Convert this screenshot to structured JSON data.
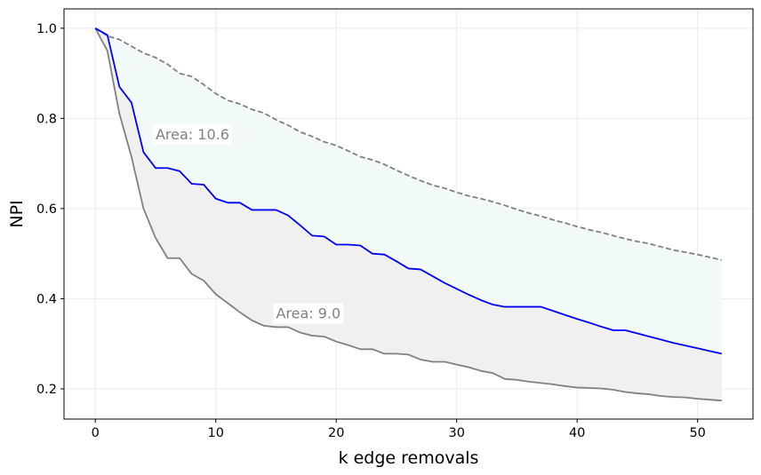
{
  "chart_data": {
    "type": "line",
    "xlabel": "k edge removals",
    "ylabel": "NPI",
    "xlim": [
      -2.6,
      54.6
    ],
    "ylim": [
      0.133,
      1.043
    ],
    "xticks": [
      0,
      10,
      20,
      30,
      40,
      50
    ],
    "yticks": [
      0.2,
      0.4,
      0.6,
      0.8,
      1.0
    ],
    "xtick_labels": [
      "0",
      "10",
      "20",
      "30",
      "40",
      "50"
    ],
    "ytick_labels": [
      "0.2",
      "0.4",
      "0.6",
      "0.8",
      "1.0"
    ],
    "grid": true,
    "x": [
      0,
      1,
      2,
      3,
      4,
      5,
      6,
      7,
      8,
      9,
      10,
      11,
      12,
      13,
      14,
      15,
      16,
      17,
      18,
      19,
      20,
      21,
      22,
      23,
      24,
      25,
      26,
      27,
      28,
      29,
      30,
      31,
      32,
      33,
      34,
      35,
      36,
      37,
      38,
      39,
      40,
      41,
      42,
      43,
      44,
      45,
      46,
      47,
      48,
      49,
      50,
      51,
      52
    ],
    "series": [
      {
        "role": "upper-bound",
        "color": "#808080",
        "dash": "dashed",
        "values": [
          1.0,
          0.983,
          0.975,
          0.96,
          0.945,
          0.935,
          0.92,
          0.9,
          0.893,
          0.875,
          0.855,
          0.84,
          0.832,
          0.82,
          0.812,
          0.797,
          0.785,
          0.77,
          0.76,
          0.748,
          0.74,
          0.728,
          0.715,
          0.708,
          0.698,
          0.685,
          0.673,
          0.662,
          0.652,
          0.645,
          0.636,
          0.628,
          0.622,
          0.615,
          0.607,
          0.598,
          0.59,
          0.583,
          0.575,
          0.568,
          0.56,
          0.553,
          0.547,
          0.54,
          0.533,
          0.527,
          0.522,
          0.515,
          0.508,
          0.503,
          0.498,
          0.492,
          0.486
        ]
      },
      {
        "role": "observed",
        "color": "#0000ff",
        "dash": "solid",
        "values": [
          1.0,
          0.985,
          0.87,
          0.835,
          0.725,
          0.69,
          0.69,
          0.683,
          0.655,
          0.653,
          0.622,
          0.613,
          0.613,
          0.597,
          0.597,
          0.597,
          0.585,
          0.563,
          0.54,
          0.538,
          0.52,
          0.52,
          0.518,
          0.5,
          0.498,
          0.483,
          0.467,
          0.465,
          0.45,
          0.435,
          0.422,
          0.409,
          0.397,
          0.387,
          0.382,
          0.382,
          0.382,
          0.382,
          0.373,
          0.364,
          0.355,
          0.347,
          0.338,
          0.33,
          0.33,
          0.323,
          0.316,
          0.309,
          0.302,
          0.296,
          0.29,
          0.284,
          0.278
        ]
      },
      {
        "role": "lower-bound",
        "color": "#808080",
        "dash": "solid",
        "values": [
          1.0,
          0.95,
          0.81,
          0.715,
          0.6,
          0.535,
          0.49,
          0.49,
          0.455,
          0.44,
          0.41,
          0.39,
          0.37,
          0.352,
          0.34,
          0.337,
          0.337,
          0.325,
          0.318,
          0.316,
          0.305,
          0.297,
          0.288,
          0.288,
          0.278,
          0.278,
          0.276,
          0.265,
          0.26,
          0.26,
          0.254,
          0.248,
          0.24,
          0.235,
          0.222,
          0.22,
          0.216,
          0.213,
          0.21,
          0.206,
          0.203,
          0.202,
          0.201,
          0.198,
          0.193,
          0.19,
          0.188,
          0.184,
          0.182,
          0.181,
          0.178,
          0.176,
          0.174
        ]
      }
    ],
    "fills": [
      {
        "between": [
          "observed",
          "upper-bound"
        ],
        "color": "#f2fafa"
      },
      {
        "between": [
          "lower-bound",
          "observed"
        ],
        "color": "#f0f0f0"
      }
    ],
    "annotations": [
      {
        "text": "Area: 10.6",
        "x": 5,
        "y": 0.765
      },
      {
        "text": "Area: 9.0",
        "x": 15,
        "y": 0.368
      }
    ]
  }
}
